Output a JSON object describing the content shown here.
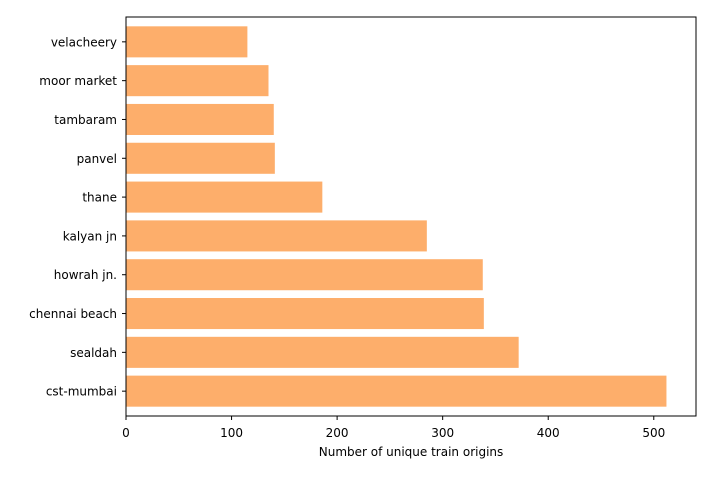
{
  "chart_data": {
    "type": "bar",
    "orientation": "horizontal",
    "categories": [
      "cst-mumbai",
      "sealdah",
      "chennai beach",
      "howrah jn.",
      "kalyan jn",
      "thane",
      "panvel",
      "tambaram",
      "moor market",
      "velacheery"
    ],
    "values": [
      512,
      372,
      339,
      338,
      285,
      186,
      141,
      140,
      135,
      115
    ],
    "xlabel": "Number of unique train origins",
    "ylabel": "",
    "xlim": [
      0,
      540
    ],
    "xticks": [
      0,
      100,
      200,
      300,
      400,
      500
    ],
    "grid": false,
    "bar_color": "#fdae6b"
  }
}
